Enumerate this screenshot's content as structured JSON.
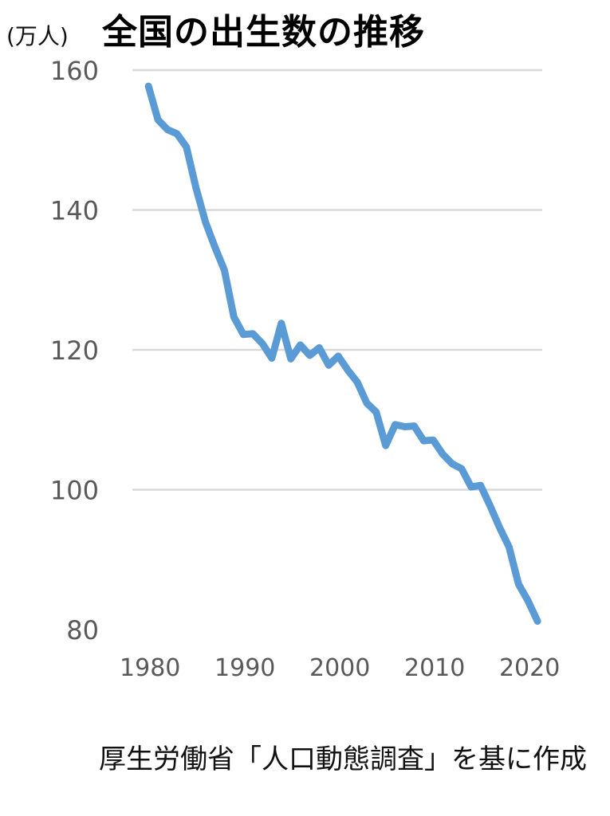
{
  "header": {
    "unit_label": "(万人)",
    "title": "全国の出生数の推移"
  },
  "footer": {
    "source_text": "厚生労働省「人口動態調査」を基に作成"
  },
  "colors": {
    "line": "#5b9bd5",
    "grid": "#d9d9d9",
    "tick_text": "#595959"
  },
  "chart_data": {
    "type": "line",
    "title": "全国の出生数の推移",
    "ylabel": "(万人)",
    "xlabel": "",
    "ylim": [
      80,
      160
    ],
    "xlim": [
      1980,
      2021
    ],
    "y_ticks": [
      160,
      140,
      120,
      100,
      80
    ],
    "x_ticks": [
      1980,
      1990,
      2000,
      2010,
      2020
    ],
    "grid": true,
    "legend": "none",
    "series": [
      {
        "x": [
          1980,
          1981,
          1982,
          1983,
          1984,
          1985,
          1986,
          1987,
          1988,
          1989,
          1990,
          1991,
          1992,
          1993,
          1994,
          1995,
          1996,
          1997,
          1998,
          1999,
          2000,
          2001,
          2002,
          2003,
          2004,
          2005,
          2006,
          2007,
          2008,
          2009,
          2010,
          2011,
          2012,
          2013,
          2014,
          2015,
          2016,
          2017,
          2018,
          2019,
          2020,
          2021
        ],
        "values": [
          157.7,
          152.9,
          151.5,
          150.9,
          149.0,
          143.2,
          138.3,
          134.7,
          131.4,
          124.7,
          122.2,
          122.3,
          120.9,
          118.8,
          123.8,
          118.7,
          120.7,
          119.2,
          120.3,
          117.8,
          119.1,
          117.1,
          115.4,
          112.4,
          111.1,
          106.3,
          109.3,
          109.0,
          109.1,
          107.0,
          107.1,
          105.1,
          103.7,
          103.0,
          100.4,
          100.6,
          97.7,
          94.6,
          91.8,
          86.5,
          84.1,
          81.2
        ]
      }
    ]
  }
}
